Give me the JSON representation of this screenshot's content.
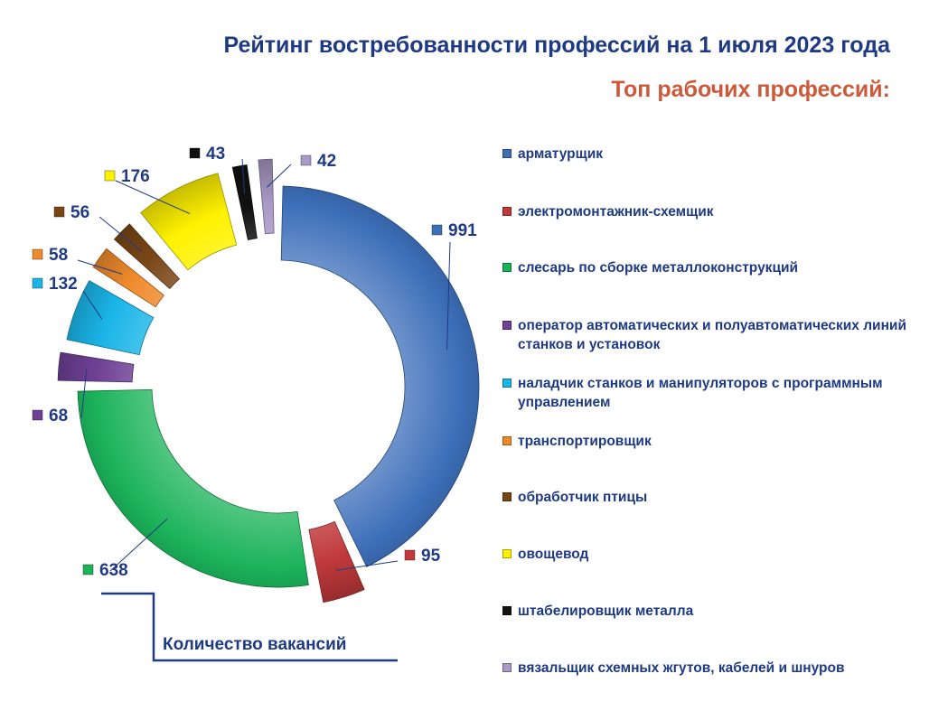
{
  "header": {
    "title": "Рейтинг востребованности профессий на 1 июля 2023 года",
    "subtitle": "Топ рабочих профессий:"
  },
  "caption": "Количество вакансий",
  "chart_data": {
    "type": "pie",
    "variant": "exploded donut",
    "title": "Рейтинг востребованности профессий на 1 июля 2023 года",
    "subtitle": "Топ рабочих профессий:",
    "value_caption": "Количество вакансий",
    "legend_position": "right",
    "slices": [
      {
        "label": "арматурщик",
        "value": 991,
        "color": "#3d6fb9"
      },
      {
        "label": "электромонтажник-схемщик",
        "value": 95,
        "color": "#c0393b"
      },
      {
        "label": "слесарь по сборке металлоконструкций",
        "value": 638,
        "color": "#1bb35a"
      },
      {
        "label": "оператор автоматических и полуавтоматических линий станков и установок",
        "value": 68,
        "color": "#6f4196"
      },
      {
        "label": "наладчик станков и манипуляторов с программным управлением",
        "value": 132,
        "color": "#1bb5e8"
      },
      {
        "label": "транспортировщик",
        "value": 58,
        "color": "#ef8a2c"
      },
      {
        "label": "обработчик птицы",
        "value": 56,
        "color": "#7a4616"
      },
      {
        "label": "овощевод",
        "value": 176,
        "color": "#fff200"
      },
      {
        "label": "штабелировщик металла",
        "value": 43,
        "color": "#111111"
      },
      {
        "label": "вязальщик схемных жгутов, кабелей и шнуров",
        "value": 42,
        "color": "#a99ac6"
      }
    ]
  }
}
